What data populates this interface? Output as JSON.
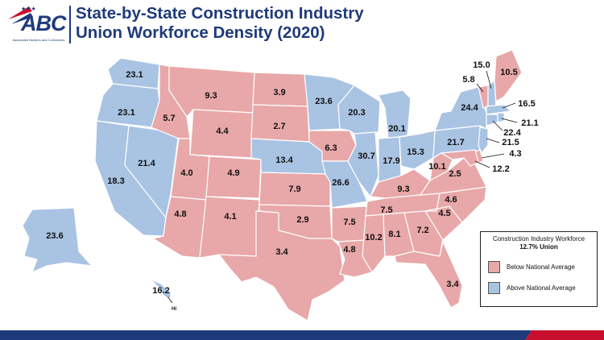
{
  "header": {
    "logo_text": "ABC",
    "logo_subtitle": "Associated Builders and Contractors",
    "title_line1": "State-by-State Construction Industry",
    "title_line2": "Union Workforce Density (2020)"
  },
  "colors": {
    "below": "#e8a7a8",
    "above": "#a9c3e3",
    "navy": "#1e3a7a",
    "red": "#c8102e"
  },
  "legend": {
    "title": "Construction Industry Workforce",
    "subtitle": "12.7% Union",
    "below_label": "Below National Average",
    "above_label": "Above National Average"
  },
  "map_data": {
    "national_average": 12.7,
    "states": {
      "WA": 23.1,
      "OR": 23.1,
      "CA": 18.3,
      "NV": 21.4,
      "ID": 5.7,
      "MT": 9.3,
      "WY": 4.4,
      "UT": 4.0,
      "CO": 4.9,
      "AZ": 4.8,
      "NM": 4.1,
      "ND": 3.9,
      "SD": 2.7,
      "NE": 13.4,
      "KS": 7.9,
      "OK": 2.9,
      "TX": 3.4,
      "MN": 23.6,
      "IA": 6.3,
      "MO": 26.6,
      "AR": 7.5,
      "LA": 4.8,
      "WI": 20.3,
      "IL": 30.7,
      "MI": 20.1,
      "IN": 17.9,
      "OH": 15.3,
      "KY": 9.3,
      "TN": 7.5,
      "MS": 10.2,
      "AL": 8.1,
      "GA": 7.2,
      "FL": 3.4,
      "SC": 4.5,
      "NC": 4.6,
      "VA": 2.5,
      "WV": 10.1,
      "PA": 21.7,
      "NY": 24.4,
      "VT": 5.8,
      "NH": 15.0,
      "ME": 10.5,
      "MA": 16.5,
      "RI": 21.1,
      "CT": 22.4,
      "NJ": 21.5,
      "DE": 4.3,
      "MD": 12.2,
      "AK": 23.6,
      "HI": 16.2
    },
    "hi_label": "HI"
  }
}
